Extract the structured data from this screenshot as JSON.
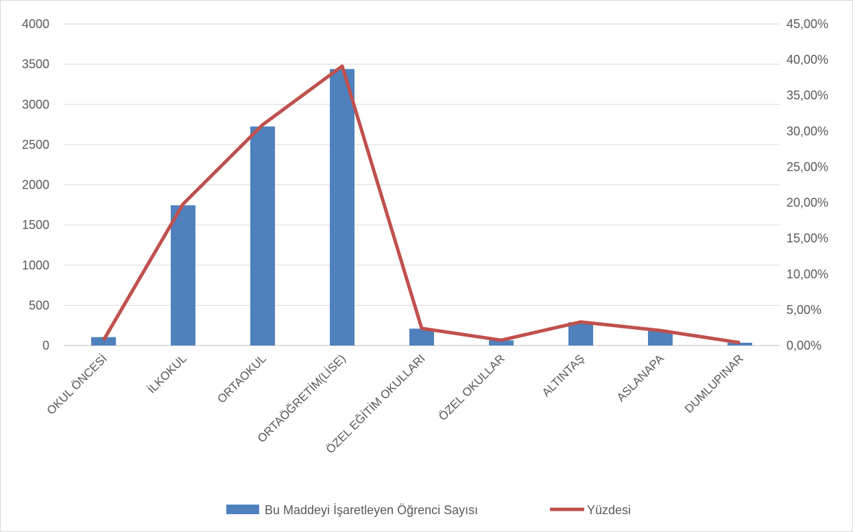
{
  "chart_data": {
    "type": "bar",
    "categories": [
      "OKUL ÖNCESİ",
      "İLKOKUL",
      "ORTAOKUL",
      "ORTAÖĞRETİM(LİSE)",
      "ÖZEL EĞİTİM OKULLARI",
      "ÖZEL OKULLAR",
      "ALTINTAŞ",
      "ASLANAPA",
      "DUMLUPINAR"
    ],
    "series": [
      {
        "name": "Bu Maddeyi İşaretleyen Öğrenci Sayısı",
        "type": "bar",
        "axis": "left",
        "values": [
          105,
          1745,
          2725,
          3440,
          210,
          65,
          290,
          185,
          35
        ],
        "color": "#4f81bd"
      },
      {
        "name": "Yüzdesi",
        "type": "line",
        "axis": "right",
        "values": [
          0.0075,
          0.198,
          0.309,
          0.391,
          0.024,
          0.0075,
          0.033,
          0.021,
          0.004
        ],
        "color": "#c0504d"
      }
    ],
    "left_axis": {
      "min": 0,
      "max": 4000,
      "ticks": [
        "0",
        "500",
        "1000",
        "1500",
        "2000",
        "2500",
        "3000",
        "3500",
        "4000"
      ]
    },
    "right_axis": {
      "min": 0,
      "max": 0.45,
      "ticks": [
        "0,00%",
        "5,00%",
        "10,00%",
        "15,00%",
        "20,00%",
        "25,00%",
        "30,00%",
        "35,00%",
        "40,00%",
        "45,00%"
      ]
    },
    "grid": true,
    "legend_position": "bottom"
  }
}
